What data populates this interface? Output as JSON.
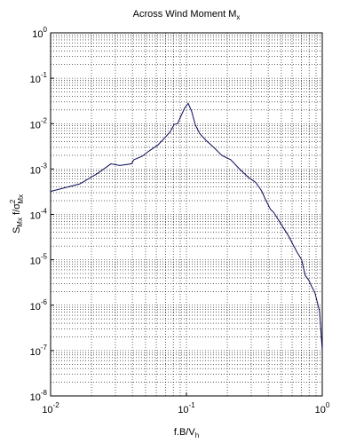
{
  "chart_data": {
    "type": "line",
    "title": {
      "text": "Across Wind Moment M",
      "sub": "x"
    },
    "xlabel": {
      "text": "f.B/V",
      "sub": "h"
    },
    "ylabel": {
      "a": "S",
      "a_sub": "Mx",
      "b": " f/σ",
      "b_sup": "2",
      "b_sub": "Mx"
    },
    "xscale": "log",
    "yscale": "log",
    "grid": true,
    "minor_grid": true,
    "xlim": [
      0.01,
      1
    ],
    "ylim": [
      1e-08,
      1
    ],
    "xticks": [
      {
        "value": 0.01,
        "label": "10",
        "exponent": "-2"
      },
      {
        "value": 0.1,
        "label": "10",
        "exponent": "-1"
      },
      {
        "value": 1,
        "label": "10",
        "exponent": "0"
      }
    ],
    "yticks": [
      {
        "value": 1e-08,
        "label": "10",
        "exponent": "-8"
      },
      {
        "value": 1e-07,
        "label": "10",
        "exponent": "-7"
      },
      {
        "value": 1e-06,
        "label": "10",
        "exponent": "-6"
      },
      {
        "value": 1e-05,
        "label": "10",
        "exponent": "-5"
      },
      {
        "value": 0.0001,
        "label": "10",
        "exponent": "-4"
      },
      {
        "value": 0.001,
        "label": "10",
        "exponent": "-3"
      },
      {
        "value": 0.01,
        "label": "10",
        "exponent": "-2"
      },
      {
        "value": 0.1,
        "label": "10",
        "exponent": "-1"
      },
      {
        "value": 1,
        "label": "10",
        "exponent": "0"
      }
    ],
    "xminorticks": [
      0.02,
      0.03,
      0.04,
      0.05,
      0.06,
      0.07,
      0.08,
      0.09,
      0.2,
      0.3,
      0.4,
      0.5,
      0.6,
      0.7,
      0.8,
      0.9
    ],
    "yminorticks": [
      2e-08,
      3e-08,
      4e-08,
      5e-08,
      6e-08,
      7e-08,
      8e-08,
      9e-08,
      2e-07,
      3e-07,
      4e-07,
      5e-07,
      6e-07,
      7e-07,
      8e-07,
      9e-07,
      2e-06,
      3e-06,
      4e-06,
      5e-06,
      6e-06,
      7e-06,
      8e-06,
      9e-06,
      2e-05,
      3e-05,
      4e-05,
      5e-05,
      6e-05,
      7e-05,
      8e-05,
      9e-05,
      0.0002,
      0.0003,
      0.0004,
      0.0005,
      0.0006,
      0.0007,
      0.0008,
      0.0009,
      0.002,
      0.003,
      0.004,
      0.005,
      0.006,
      0.007,
      0.008,
      0.009,
      0.02,
      0.03,
      0.04,
      0.05,
      0.06,
      0.07,
      0.08,
      0.09,
      0.2,
      0.3,
      0.4,
      0.5,
      0.6,
      0.7,
      0.8,
      0.9
    ],
    "series": [
      {
        "color": "#0a0a5a",
        "x": [
          0.01,
          0.0164,
          0.0222,
          0.0278,
          0.0323,
          0.0394,
          0.041,
          0.0471,
          0.0531,
          0.0618,
          0.0698,
          0.0763,
          0.0811,
          0.0861,
          0.0914,
          0.097,
          0.103,
          0.109,
          0.116,
          0.125,
          0.139,
          0.157,
          0.182,
          0.212,
          0.246,
          0.287,
          0.323,
          0.358,
          0.38,
          0.415,
          0.44,
          0.464,
          0.523,
          0.56,
          0.607,
          0.65,
          0.705,
          0.75,
          0.794,
          0.84,
          0.882,
          0.955,
          1.0
        ],
        "values": [
          0.00032,
          0.00047,
          0.0008,
          0.0013,
          0.0012,
          0.0013,
          0.0016,
          0.0019,
          0.0025,
          0.0034,
          0.005,
          0.0067,
          0.0096,
          0.01,
          0.015,
          0.022,
          0.028,
          0.019,
          0.0096,
          0.0061,
          0.0043,
          0.0031,
          0.002,
          0.0016,
          0.001,
          0.00065,
          0.00051,
          0.00033,
          0.00022,
          0.00013,
          0.00011,
          8.5e-05,
          4.8e-05,
          3.5e-05,
          2.2e-05,
          1.5e-05,
          1e-05,
          4.5e-06,
          3.6e-06,
          2.5e-06,
          1.9e-06,
          7.4e-07,
          1e-07
        ]
      }
    ]
  }
}
